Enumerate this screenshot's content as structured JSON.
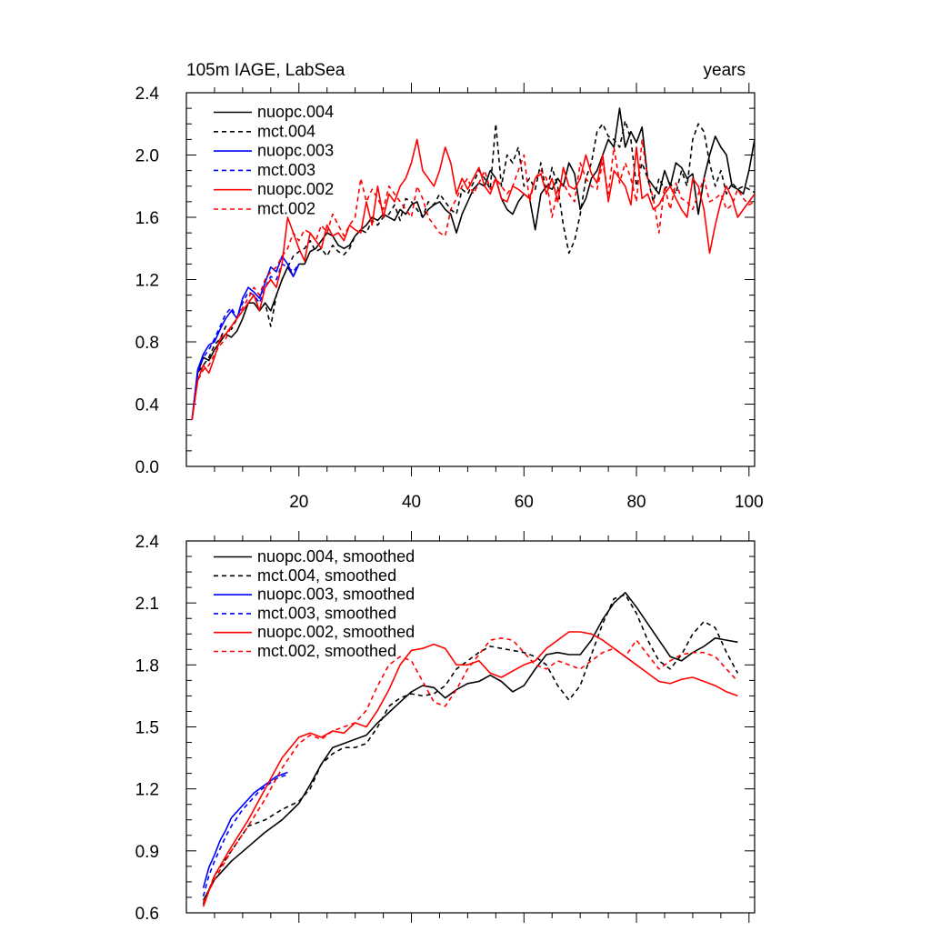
{
  "chart_data": [
    {
      "type": "line",
      "title": "105m IAGE, LabSea",
      "xlabel": "years",
      "ylabel": "",
      "xlim": [
        0,
        101
      ],
      "ylim": [
        0.0,
        2.4
      ],
      "xticks": [
        20,
        40,
        60,
        80,
        100
      ],
      "xtick_labels": [
        "20",
        "40",
        "60",
        "80",
        "100"
      ],
      "yticks": [
        0.0,
        0.4,
        0.8,
        1.2,
        1.6,
        2.0,
        2.4
      ],
      "ytick_labels": [
        "0.0",
        "0.4",
        "0.8",
        "1.2",
        "1.6",
        "2.0",
        "2.4"
      ],
      "legend_position": "top-left",
      "series": [
        {
          "name": "nuopc.004",
          "color": "#000000",
          "dashed": false,
          "x_start": 1,
          "values": [
            0.3,
            0.6,
            0.7,
            0.68,
            0.75,
            0.8,
            0.85,
            0.83,
            0.87,
            0.95,
            1.05,
            1.05,
            1.0,
            1.05,
            1.0,
            1.1,
            1.2,
            1.28,
            1.22,
            1.3,
            1.3,
            1.38,
            1.4,
            1.45,
            1.5,
            1.48,
            1.42,
            1.4,
            1.42,
            1.48,
            1.52,
            1.55,
            1.6,
            1.58,
            1.62,
            1.6,
            1.58,
            1.65,
            1.62,
            1.68,
            1.7,
            1.6,
            1.65,
            1.68,
            1.7,
            1.65,
            1.62,
            1.5,
            1.62,
            1.7,
            1.78,
            1.82,
            1.8,
            1.9,
            1.85,
            1.72,
            1.65,
            1.62,
            1.7,
            1.75,
            1.72,
            1.52,
            1.75,
            1.8,
            1.78,
            1.85,
            1.8,
            1.95,
            1.88,
            1.65,
            1.72,
            1.85,
            1.9,
            2.0,
            2.1,
            2.05,
            2.3,
            2.05,
            2.15,
            2.08,
            2.18,
            1.85,
            1.8,
            1.75,
            1.9,
            1.8,
            1.95,
            1.92,
            1.85,
            1.88,
            1.62,
            1.85,
            2.0,
            2.12,
            2.05,
            2.0,
            1.8,
            1.78,
            1.75,
            1.9,
            2.1
          ]
        },
        {
          "name": "mct.004",
          "color": "#000000",
          "dashed": true,
          "x_start": 1,
          "values": [
            0.3,
            0.6,
            0.65,
            0.7,
            0.78,
            0.82,
            0.9,
            0.88,
            0.95,
            1.0,
            1.05,
            1.1,
            1.0,
            1.05,
            0.9,
            1.1,
            1.2,
            1.28,
            1.35,
            1.38,
            1.4,
            1.45,
            1.38,
            1.4,
            1.35,
            1.42,
            1.38,
            1.36,
            1.4,
            1.48,
            1.52,
            1.5,
            1.58,
            1.55,
            1.6,
            1.62,
            1.68,
            1.58,
            1.72,
            1.7,
            1.65,
            1.6,
            1.7,
            1.68,
            1.75,
            1.7,
            1.65,
            1.62,
            1.78,
            1.75,
            1.82,
            1.9,
            1.85,
            1.78,
            2.2,
            1.8,
            2.0,
            1.95,
            2.05,
            1.8,
            1.85,
            1.78,
            1.95,
            1.75,
            1.92,
            1.8,
            1.55,
            1.37,
            1.45,
            1.62,
            1.85,
            1.95,
            2.15,
            2.2,
            2.12,
            2.1,
            2.05,
            2.22,
            2.1,
            1.8,
            1.95,
            1.85,
            1.7,
            1.85,
            1.78,
            1.82,
            1.75,
            1.9,
            1.8,
            2.1,
            2.2,
            2.15,
            1.95,
            1.8,
            1.9,
            1.75,
            1.82,
            1.78,
            1.8,
            1.78,
            1.76
          ]
        },
        {
          "name": "nuopc.003",
          "color": "#0000ff",
          "dashed": false,
          "x_start": 1,
          "values": [
            0.3,
            0.62,
            0.72,
            0.78,
            0.8,
            0.88,
            0.95,
            1.0,
            0.95,
            1.08,
            1.15,
            1.12,
            1.08,
            1.18,
            1.28,
            1.25,
            1.35,
            1.3,
            1.22,
            1.3
          ]
        },
        {
          "name": "mct.003",
          "color": "#0000ff",
          "dashed": true,
          "x_start": 1,
          "values": [
            0.3,
            0.6,
            0.7,
            0.75,
            0.82,
            0.9,
            0.98,
            1.02,
            0.95,
            1.05,
            1.12,
            1.1,
            1.05,
            1.15,
            1.22,
            1.2,
            1.3,
            1.28,
            1.25,
            1.3
          ]
        },
        {
          "name": "nuopc.002",
          "color": "#ff0000",
          "dashed": false,
          "x_start": 1,
          "values": [
            0.3,
            0.55,
            0.65,
            0.6,
            0.7,
            0.82,
            0.85,
            0.9,
            0.95,
            1.0,
            1.05,
            1.1,
            1.0,
            1.15,
            1.2,
            1.15,
            1.3,
            1.6,
            1.5,
            1.4,
            1.32,
            1.5,
            1.45,
            1.4,
            1.55,
            1.48,
            1.5,
            1.45,
            1.55,
            1.52,
            1.5,
            1.7,
            1.55,
            1.8,
            1.6,
            1.75,
            1.7,
            1.8,
            1.85,
            1.95,
            2.1,
            1.9,
            1.85,
            1.8,
            1.9,
            2.05,
            1.95,
            1.75,
            1.85,
            1.78,
            1.85,
            1.92,
            1.8,
            1.75,
            1.85,
            1.72,
            1.7,
            1.8,
            1.78,
            1.75,
            1.72,
            1.85,
            1.88,
            1.75,
            1.85,
            1.7,
            1.92,
            1.8,
            1.78,
            1.85,
            2.0,
            1.88,
            1.82,
            2.0,
            1.7,
            1.9,
            1.85,
            1.8,
            1.68,
            2.05,
            1.72,
            1.75,
            1.65,
            1.68,
            1.75,
            1.8,
            1.72,
            1.65,
            1.6,
            1.85,
            1.8,
            1.65,
            1.37,
            1.55,
            1.7,
            1.8,
            1.72,
            1.6,
            1.65,
            1.7,
            1.75
          ]
        },
        {
          "name": "mct.002",
          "color": "#ff0000",
          "dashed": true,
          "x_start": 1,
          "values": [
            0.3,
            0.55,
            0.62,
            0.65,
            0.72,
            0.78,
            0.82,
            0.9,
            0.95,
            1.02,
            1.08,
            1.15,
            1.1,
            1.2,
            1.25,
            1.28,
            1.35,
            1.4,
            1.5,
            1.45,
            1.52,
            1.5,
            1.45,
            1.55,
            1.5,
            1.62,
            1.55,
            1.48,
            1.55,
            1.6,
            1.85,
            1.7,
            1.78,
            1.72,
            1.65,
            1.8,
            1.75,
            1.7,
            1.65,
            1.6,
            1.8,
            1.72,
            1.6,
            1.55,
            1.5,
            1.48,
            1.65,
            1.72,
            1.8,
            1.85,
            1.75,
            1.82,
            1.9,
            1.78,
            1.85,
            1.8,
            1.75,
            1.8,
            1.9,
            2.0,
            1.7,
            1.85,
            1.9,
            1.85,
            1.6,
            1.78,
            1.82,
            1.75,
            1.7,
            1.95,
            1.85,
            1.8,
            1.78,
            1.95,
            1.75,
            2.05,
            1.82,
            1.95,
            1.85,
            1.7,
            2.1,
            1.85,
            1.72,
            1.5,
            1.8,
            1.65,
            1.82,
            1.72,
            1.7,
            1.65,
            1.75,
            1.85,
            1.7,
            1.72,
            1.75,
            1.65,
            1.68,
            1.78,
            1.72,
            1.68,
            1.7
          ]
        }
      ],
      "legend": [
        "nuopc.004",
        "mct.004",
        "nuopc.003",
        "mct.003",
        "nuopc.002",
        "mct.002"
      ]
    },
    {
      "type": "line",
      "title": "",
      "xlabel": "",
      "ylabel": "",
      "xlim": [
        0,
        101
      ],
      "ylim": [
        0.6,
        2.4
      ],
      "xticks": [
        20,
        40,
        60,
        80,
        100
      ],
      "yticks": [
        0.6,
        0.9,
        1.2,
        1.5,
        1.8,
        2.1,
        2.4
      ],
      "ytick_labels": [
        "0.6",
        "0.9",
        "1.2",
        "1.5",
        "1.8",
        "2.1",
        "2.4"
      ],
      "legend_position": "top-left",
      "series": [
        {
          "name": "nuopc.004, smoothed",
          "color": "#000000",
          "dashed": false,
          "x": [
            3,
            5,
            8,
            11,
            14,
            17,
            20,
            22,
            24,
            26,
            28,
            30,
            32,
            34,
            36,
            38,
            40,
            42,
            44,
            46,
            48,
            50,
            52,
            54,
            56,
            58,
            60,
            62,
            64,
            66,
            68,
            70,
            72,
            74,
            76,
            78,
            80,
            82,
            84,
            86,
            88,
            90,
            92,
            94,
            96,
            98
          ],
          "values": [
            0.66,
            0.76,
            0.85,
            0.92,
            0.99,
            1.05,
            1.13,
            1.22,
            1.32,
            1.4,
            1.42,
            1.44,
            1.46,
            1.52,
            1.57,
            1.62,
            1.67,
            1.7,
            1.69,
            1.64,
            1.68,
            1.71,
            1.72,
            1.75,
            1.72,
            1.67,
            1.7,
            1.78,
            1.85,
            1.86,
            1.85,
            1.85,
            1.92,
            2.02,
            2.1,
            2.15,
            2.08,
            2.0,
            1.92,
            1.84,
            1.82,
            1.86,
            1.89,
            1.93,
            1.92,
            1.91
          ]
        },
        {
          "name": "mct.004, smoothed",
          "color": "#000000",
          "dashed": true,
          "x": [
            3,
            5,
            8,
            11,
            14,
            17,
            20,
            22,
            24,
            26,
            28,
            30,
            32,
            34,
            36,
            38,
            40,
            42,
            44,
            46,
            48,
            50,
            52,
            54,
            56,
            58,
            60,
            62,
            64,
            66,
            68,
            70,
            72,
            74,
            76,
            78,
            80,
            82,
            84,
            86,
            88,
            90,
            92,
            94,
            96,
            98
          ],
          "values": [
            0.64,
            0.78,
            0.9,
            1.02,
            1.05,
            1.1,
            1.14,
            1.2,
            1.32,
            1.37,
            1.4,
            1.4,
            1.42,
            1.5,
            1.6,
            1.64,
            1.66,
            1.65,
            1.66,
            1.7,
            1.78,
            1.82,
            1.86,
            1.89,
            1.88,
            1.87,
            1.86,
            1.84,
            1.8,
            1.7,
            1.63,
            1.7,
            1.85,
            2.0,
            2.12,
            2.14,
            2.05,
            1.92,
            1.82,
            1.78,
            1.85,
            1.95,
            2.01,
            1.98,
            1.86,
            1.76
          ]
        },
        {
          "name": "nuopc.003, smoothed",
          "color": "#0000ff",
          "dashed": false,
          "x": [
            3,
            4,
            5,
            6,
            7,
            8,
            9,
            10,
            11,
            12,
            13,
            14,
            15,
            16,
            17,
            18
          ],
          "values": [
            0.72,
            0.82,
            0.88,
            0.95,
            1.0,
            1.06,
            1.09,
            1.12,
            1.15,
            1.18,
            1.2,
            1.22,
            1.24,
            1.26,
            1.27,
            1.28
          ]
        },
        {
          "name": "mct.003, smoothed",
          "color": "#0000ff",
          "dashed": true,
          "x": [
            3,
            4,
            5,
            6,
            7,
            8,
            9,
            10,
            11,
            12,
            13,
            14,
            15,
            16,
            17,
            18
          ],
          "values": [
            0.68,
            0.78,
            0.85,
            0.91,
            0.97,
            1.02,
            1.06,
            1.1,
            1.13,
            1.16,
            1.19,
            1.21,
            1.23,
            1.25,
            1.26,
            1.27
          ]
        },
        {
          "name": "nuopc.002, smoothed",
          "color": "#ff0000",
          "dashed": false,
          "x": [
            3,
            5,
            8,
            11,
            14,
            17,
            20,
            22,
            24,
            26,
            28,
            30,
            32,
            34,
            36,
            38,
            40,
            42,
            44,
            46,
            48,
            50,
            52,
            54,
            56,
            58,
            60,
            62,
            64,
            66,
            68,
            70,
            72,
            74,
            76,
            78,
            80,
            82,
            84,
            86,
            88,
            90,
            92,
            94,
            96,
            98
          ],
          "values": [
            0.63,
            0.78,
            0.92,
            1.05,
            1.2,
            1.35,
            1.45,
            1.47,
            1.45,
            1.48,
            1.47,
            1.52,
            1.5,
            1.58,
            1.68,
            1.8,
            1.87,
            1.88,
            1.9,
            1.88,
            1.8,
            1.8,
            1.82,
            1.76,
            1.74,
            1.77,
            1.8,
            1.82,
            1.88,
            1.92,
            1.96,
            1.96,
            1.95,
            1.92,
            1.88,
            1.84,
            1.8,
            1.76,
            1.72,
            1.71,
            1.73,
            1.74,
            1.72,
            1.7,
            1.67,
            1.65
          ]
        },
        {
          "name": "mct.002, smoothed",
          "color": "#ff0000",
          "dashed": true,
          "x": [
            3,
            5,
            8,
            11,
            14,
            17,
            20,
            22,
            24,
            26,
            28,
            30,
            32,
            34,
            36,
            38,
            40,
            42,
            44,
            46,
            48,
            50,
            52,
            54,
            56,
            58,
            60,
            62,
            64,
            66,
            68,
            70,
            72,
            74,
            76,
            78,
            80,
            82,
            84,
            86,
            88,
            90,
            92,
            94,
            96,
            98
          ],
          "values": [
            0.65,
            0.76,
            0.9,
            1.02,
            1.15,
            1.3,
            1.42,
            1.46,
            1.44,
            1.48,
            1.5,
            1.52,
            1.58,
            1.7,
            1.8,
            1.84,
            1.82,
            1.72,
            1.62,
            1.6,
            1.68,
            1.78,
            1.85,
            1.92,
            1.93,
            1.92,
            1.86,
            1.8,
            1.78,
            1.82,
            1.8,
            1.78,
            1.82,
            1.86,
            1.88,
            1.84,
            1.92,
            1.85,
            1.78,
            1.82,
            1.85,
            1.86,
            1.86,
            1.84,
            1.78,
            1.72
          ]
        }
      ],
      "legend": [
        "nuopc.004, smoothed",
        "mct.004, smoothed",
        "nuopc.003, smoothed",
        "mct.003, smoothed",
        "nuopc.002, smoothed",
        "mct.002, smoothed"
      ]
    }
  ]
}
